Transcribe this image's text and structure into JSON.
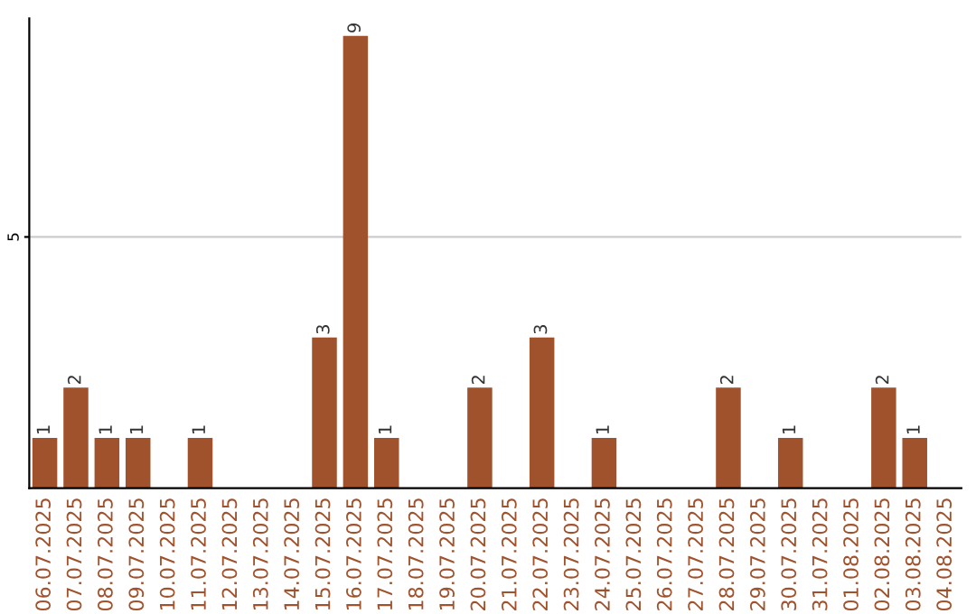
{
  "chart_data": {
    "type": "bar",
    "categories": [
      "06.07.2025",
      "07.07.2025",
      "08.07.2025",
      "09.07.2025",
      "10.07.2025",
      "11.07.2025",
      "12.07.2025",
      "13.07.2025",
      "14.07.2025",
      "15.07.2025",
      "16.07.2025",
      "17.07.2025",
      "18.07.2025",
      "19.07.2025",
      "20.07.2025",
      "21.07.2025",
      "22.07.2025",
      "23.07.2025",
      "24.07.2025",
      "25.07.2025",
      "26.07.2025",
      "27.07.2025",
      "28.07.2025",
      "29.07.2025",
      "30.07.2025",
      "31.07.2025",
      "01.08.2025",
      "02.08.2025",
      "03.08.2025",
      "04.08.2025"
    ],
    "values": [
      1,
      2,
      1,
      1,
      0,
      1,
      0,
      0,
      0,
      3,
      9,
      1,
      0,
      0,
      2,
      0,
      3,
      0,
      1,
      0,
      0,
      0,
      2,
      0,
      1,
      0,
      0,
      2,
      1,
      0
    ],
    "value_labels": [
      "1",
      "2",
      "1",
      "1",
      null,
      "1",
      null,
      null,
      null,
      "3",
      "9",
      "1",
      null,
      null,
      "2",
      null,
      "3",
      null,
      "1",
      null,
      null,
      null,
      "2",
      null,
      "1",
      null,
      null,
      "2",
      "1",
      null
    ],
    "color": "#a0522d",
    "ylim": [
      0,
      9.35
    ],
    "yticks": [
      5
    ],
    "grid": "y"
  }
}
